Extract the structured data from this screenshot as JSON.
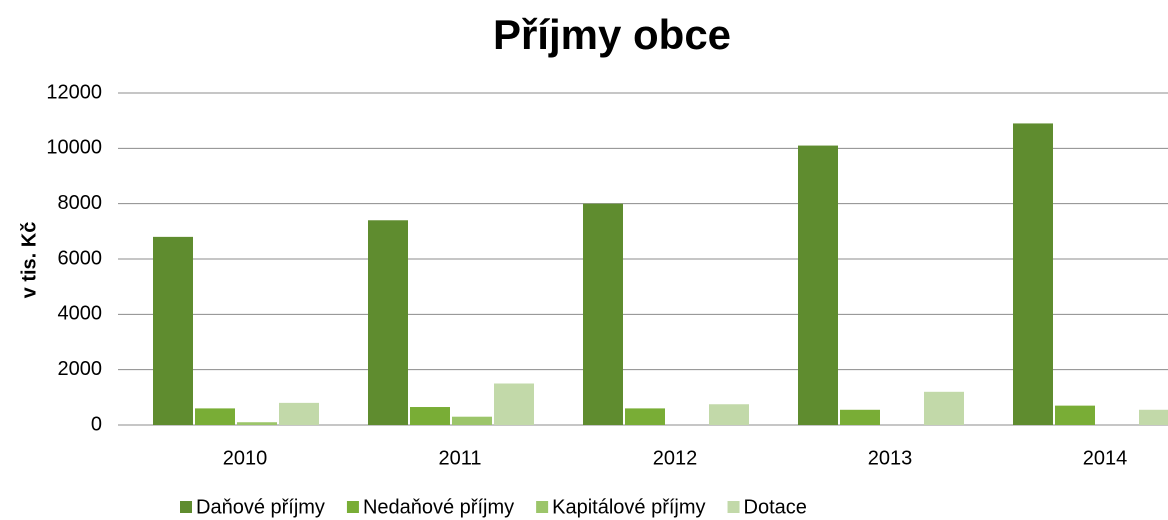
{
  "chart_data": {
    "type": "bar",
    "title": "Příjmy obce",
    "y_label": "v tis. Kč",
    "categories": [
      "2010",
      "2011",
      "2012",
      "2013",
      "2014"
    ],
    "series": [
      {
        "name": "Daňové příjmy",
        "color": "#5f8c2f",
        "values": [
          6800,
          7400,
          8000,
          10100,
          10900
        ]
      },
      {
        "name": "Nedaňové příjmy",
        "color": "#79ad36",
        "values": [
          600,
          650,
          600,
          550,
          700
        ]
      },
      {
        "name": "Kapitálové příjmy",
        "color": "#9cc56a",
        "values": [
          100,
          300,
          0,
          0,
          0
        ]
      },
      {
        "name": "Dotace",
        "color": "#c2d9a9",
        "values": [
          800,
          1500,
          750,
          1200,
          550
        ]
      }
    ],
    "ylim": [
      0,
      12000
    ],
    "yticks": [
      0,
      2000,
      4000,
      6000,
      8000,
      10000,
      12000
    ],
    "grid": true,
    "legend": "bottom"
  }
}
